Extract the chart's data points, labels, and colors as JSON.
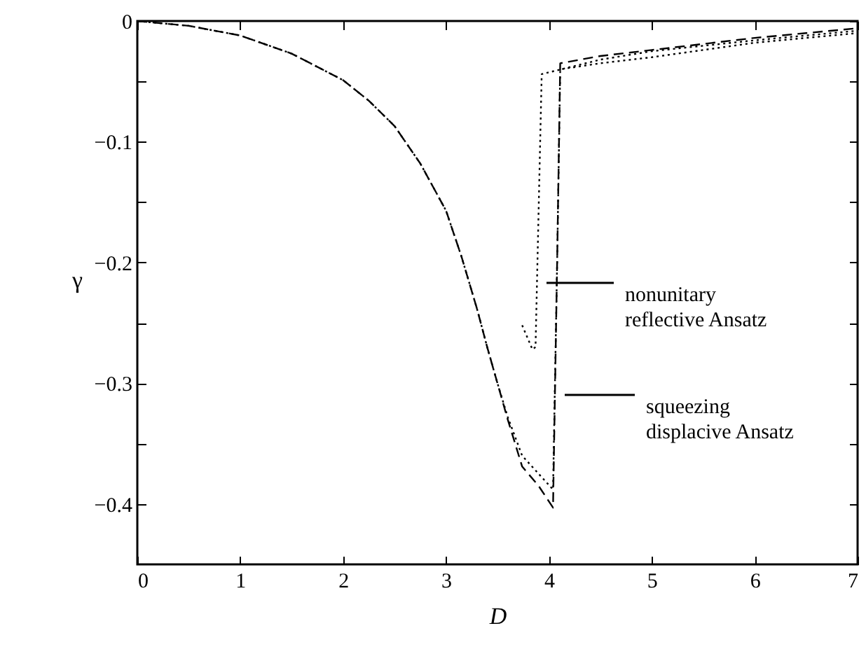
{
  "chart_data": {
    "type": "line",
    "xlabel": "D",
    "ylabel": "γ",
    "xlim": [
      0,
      7
    ],
    "ylim": [
      -0.45,
      0
    ],
    "xticks": [
      0,
      1,
      2,
      3,
      4,
      5,
      6,
      7
    ],
    "yticks": [
      {
        "value": 0,
        "label": "0"
      },
      {
        "value": -0.05,
        "label": null
      },
      {
        "value": -0.1,
        "label": "−0.1"
      },
      {
        "value": -0.15,
        "label": null
      },
      {
        "value": -0.2,
        "label": "−0.2"
      },
      {
        "value": -0.25,
        "label": null
      },
      {
        "value": -0.3,
        "label": "−0.3"
      },
      {
        "value": -0.35,
        "label": null
      },
      {
        "value": -0.4,
        "label": "−0.4"
      }
    ],
    "series": [
      {
        "color": "#000000",
        "line_style": "dashed",
        "x": [
          0,
          0.5,
          1,
          1.5,
          2,
          2.25,
          2.5,
          2.75,
          3,
          3.15,
          3.3,
          3.4,
          3.5,
          3.6,
          3.74,
          3.9,
          4.04,
          4.08,
          4.11,
          4.5,
          5,
          5.5,
          6,
          6.5,
          7
        ],
        "values": [
          0,
          -0.004,
          -0.012,
          -0.027,
          -0.049,
          -0.066,
          -0.087,
          -0.118,
          -0.157,
          -0.195,
          -0.238,
          -0.27,
          -0.3,
          -0.33,
          -0.369,
          -0.385,
          -0.403,
          -0.2,
          -0.035,
          -0.029,
          -0.024,
          -0.019,
          -0.014,
          -0.01,
          -0.006
        ]
      },
      {
        "color": "#000000",
        "line_style": "dotted",
        "x": [
          0,
          0.5,
          1,
          1.5,
          2,
          2.25,
          2.5,
          2.75,
          3,
          3.15,
          3.3,
          3.4,
          3.5,
          3.6,
          3.74,
          3.9,
          4.04,
          4.08,
          4.11,
          4.5,
          5,
          5.5,
          6,
          6.5,
          7
        ],
        "values": [
          0,
          -0.004,
          -0.012,
          -0.027,
          -0.049,
          -0.066,
          -0.087,
          -0.118,
          -0.157,
          -0.195,
          -0.238,
          -0.27,
          -0.3,
          -0.328,
          -0.36,
          -0.375,
          -0.388,
          -0.2,
          -0.04,
          -0.035,
          -0.03,
          -0.024,
          -0.018,
          -0.014,
          -0.01
        ]
      },
      {
        "color": "#000000",
        "line_style": "dotted",
        "x": [
          3.74,
          3.84,
          3.87,
          3.93,
          4.5,
          5,
          6,
          7
        ],
        "values": [
          -0.252,
          -0.272,
          -0.27,
          -0.044,
          -0.032,
          -0.025,
          -0.016,
          -0.008
        ]
      }
    ],
    "annotations": [
      "nonunitary\n  reflective Ansatz",
      "squeezing\n  displacive Ansatz"
    ]
  }
}
